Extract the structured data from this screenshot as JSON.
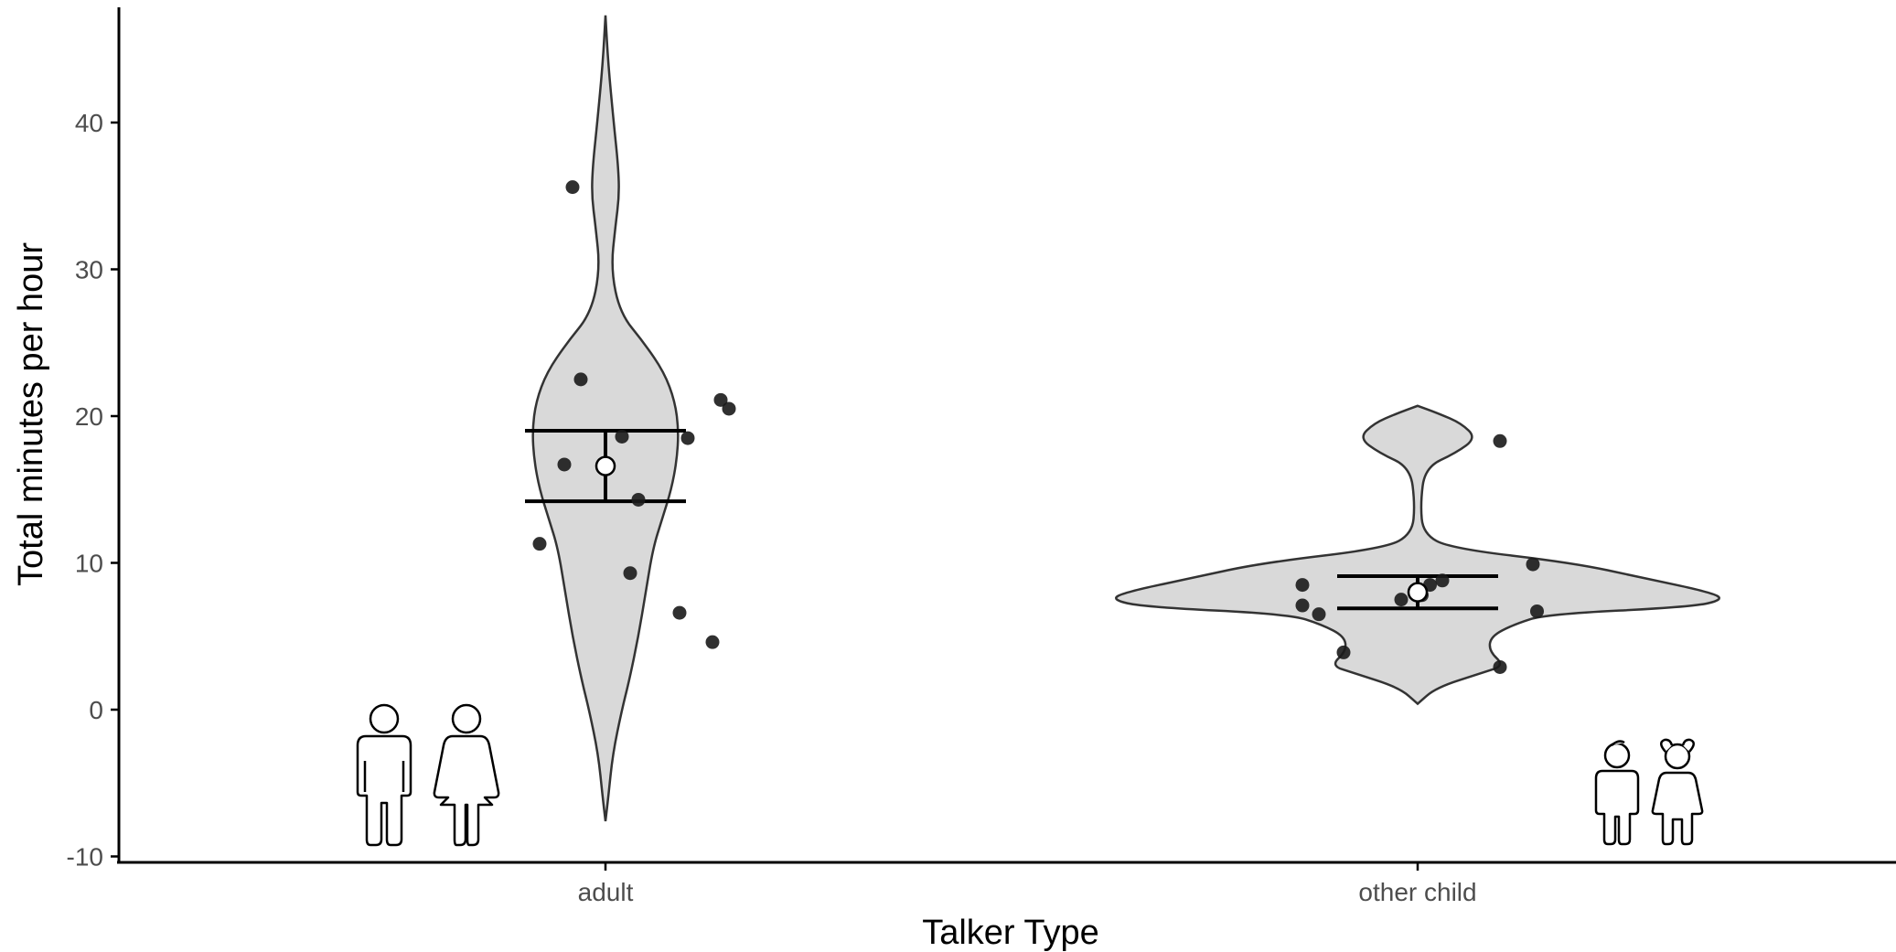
{
  "chart_data": {
    "type": "violin",
    "xlabel": "Talker Type",
    "ylabel": "Total minutes per hour",
    "ylim": [
      -10,
      48
    ],
    "yticks": [
      -10,
      0,
      10,
      20,
      30,
      40
    ],
    "grid": false,
    "categories": [
      "adult",
      "other child"
    ],
    "groups": [
      {
        "name": "adult",
        "icon": "adult-man-woman-icon",
        "mean": 16.6,
        "error": [
          14.2,
          19.0
        ],
        "violin_range": [
          -7.6,
          47.3
        ],
        "points": [
          {
            "x_offset": -0.04,
            "y": 35.6
          },
          {
            "x_offset": -0.03,
            "y": 22.5
          },
          {
            "x_offset": 0.14,
            "y": 21.1
          },
          {
            "x_offset": 0.15,
            "y": 20.5
          },
          {
            "x_offset": 0.02,
            "y": 18.6
          },
          {
            "x_offset": 0.1,
            "y": 18.5
          },
          {
            "x_offset": -0.05,
            "y": 16.7
          },
          {
            "x_offset": 0.04,
            "y": 14.3
          },
          {
            "x_offset": -0.08,
            "y": 11.3
          },
          {
            "x_offset": 0.03,
            "y": 9.3
          },
          {
            "x_offset": 0.09,
            "y": 6.6
          },
          {
            "x_offset": 0.13,
            "y": 4.6
          }
        ]
      },
      {
        "name": "other child",
        "icon": "child-boy-girl-icon",
        "mean": 8.0,
        "error": [
          6.9,
          9.1
        ],
        "violin_range": [
          0.4,
          20.7
        ],
        "points": [
          {
            "x_offset": 0.1,
            "y": 18.3
          },
          {
            "x_offset": 0.14,
            "y": 9.9
          },
          {
            "x_offset": -0.14,
            "y": 8.5
          },
          {
            "x_offset": 0.03,
            "y": 8.8
          },
          {
            "x_offset": 0.015,
            "y": 8.5
          },
          {
            "x_offset": 0.005,
            "y": 7.8
          },
          {
            "x_offset": -0.02,
            "y": 7.5
          },
          {
            "x_offset": -0.14,
            "y": 7.1
          },
          {
            "x_offset": -0.12,
            "y": 6.5
          },
          {
            "x_offset": 0.145,
            "y": 6.7
          },
          {
            "x_offset": -0.09,
            "y": 3.9
          },
          {
            "x_offset": 0.1,
            "y": 2.9
          }
        ]
      }
    ]
  }
}
